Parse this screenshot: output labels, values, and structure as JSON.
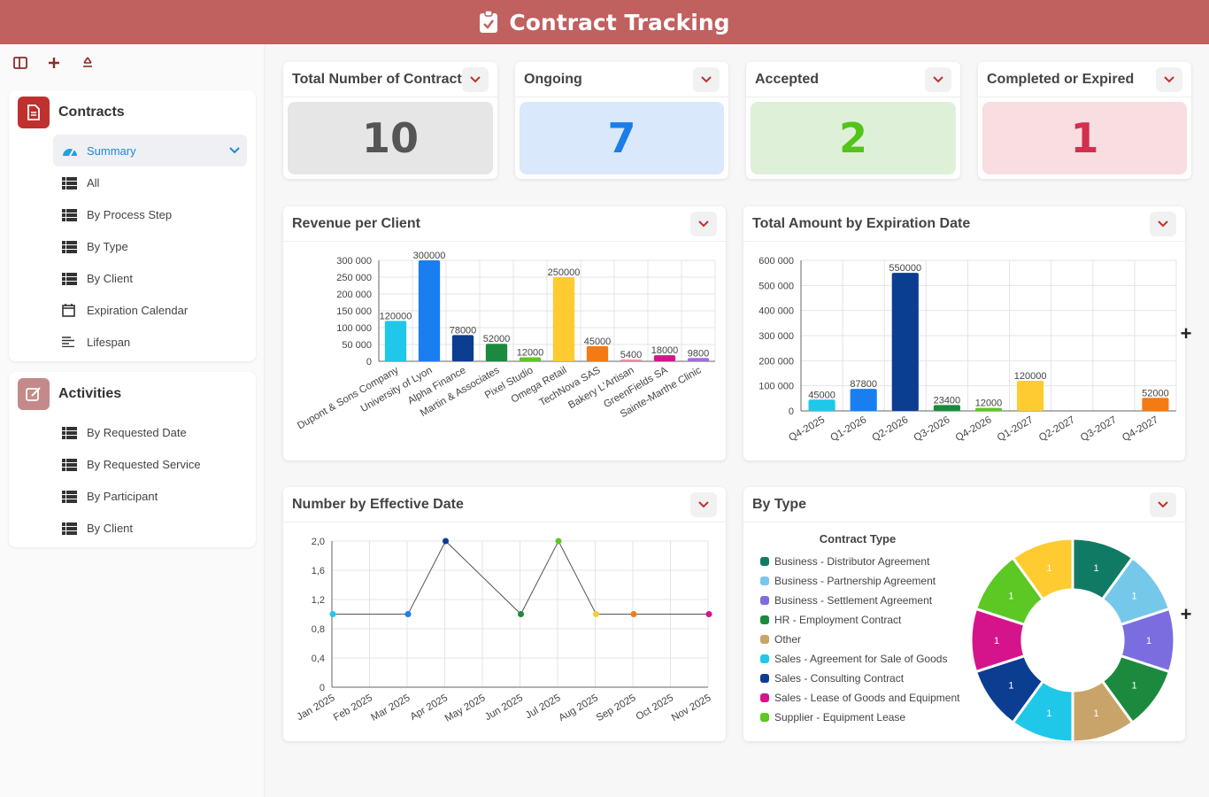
{
  "header": {
    "title": "Contract Tracking"
  },
  "sidebar": {
    "sections": [
      {
        "title": "Contracts",
        "color": "#c0302f",
        "items": [
          {
            "label": "Summary",
            "icon": "gauge-icon",
            "active": true
          },
          {
            "label": "All",
            "icon": "list-icon"
          },
          {
            "label": "By Process Step",
            "icon": "list-icon"
          },
          {
            "label": "By Type",
            "icon": "list-icon"
          },
          {
            "label": "By Client",
            "icon": "list-icon"
          },
          {
            "label": "Expiration Calendar",
            "icon": "calendar-icon"
          },
          {
            "label": "Lifespan",
            "icon": "lines-icon"
          }
        ]
      },
      {
        "title": "Activities",
        "color": "#c48a89",
        "items": [
          {
            "label": "By Requested Date",
            "icon": "list-icon"
          },
          {
            "label": "By Requested Service",
            "icon": "list-icon"
          },
          {
            "label": "By Participant",
            "icon": "list-icon"
          },
          {
            "label": "By Client",
            "icon": "list-icon"
          }
        ]
      }
    ]
  },
  "kpis": [
    {
      "title": "Total Number of Contract",
      "value": "10",
      "bg": "#e6e6e6",
      "color": "#555555"
    },
    {
      "title": "Ongoing",
      "value": "7",
      "bg": "#d9e8fb",
      "color": "#1a7ee6"
    },
    {
      "title": "Accepted",
      "value": "2",
      "bg": "#dff0d8",
      "color": "#52c41a"
    },
    {
      "title": "Completed or Expired",
      "value": "1",
      "bg": "#f8dde1",
      "color": "#d3304e"
    }
  ],
  "panels": {
    "revenue": "Revenue per Client",
    "expiration": "Total Amount by Expiration Date",
    "effective": "Number by Effective Date",
    "bytype": "By Type"
  },
  "chart_data": [
    {
      "type": "bar",
      "title": "Revenue per Client",
      "categories": [
        "Dupont & Sons Company",
        "University of Lyon",
        "Alpha Finance",
        "Martin & Associates",
        "Pixel Studio",
        "Omega Retail",
        "TechNova SAS",
        "Bakery L'Artisan",
        "GreenFields SA",
        "Sainte-Marthe Clinic"
      ],
      "values": [
        120000,
        300000,
        78000,
        52000,
        12000,
        250000,
        45000,
        5400,
        18000,
        9800
      ],
      "colors": [
        "#1fc8e8",
        "#1a7ef0",
        "#0b3d91",
        "#1b8a3e",
        "#5bc823",
        "#fecb30",
        "#f47a14",
        "#f08ca0",
        "#d5148b",
        "#a56bdc"
      ],
      "yticks": [
        "300 000",
        "250 000",
        "200 000",
        "150 000",
        "100 000",
        "50 000",
        "0"
      ],
      "ylim": [
        0,
        300000
      ]
    },
    {
      "type": "bar",
      "title": "Total Amount by Expiration Date",
      "categories": [
        "Q4-2025",
        "Q1-2026",
        "Q2-2026",
        "Q3-2026",
        "Q4-2026",
        "Q1-2027",
        "Q2-2027",
        "Q3-2027",
        "Q4-2027"
      ],
      "values": [
        45000,
        87800,
        550000,
        23400,
        12000,
        120000,
        null,
        null,
        52000
      ],
      "colors": [
        "#1fc8e8",
        "#1a7ef0",
        "#0b3d91",
        "#1b8a3e",
        "#5bc823",
        "#fecb30",
        "#cccccc",
        "#cccccc",
        "#f47a14"
      ],
      "yticks": [
        "600 000",
        "500 000",
        "400 000",
        "300 000",
        "200 000",
        "100 000",
        "0"
      ],
      "ylim": [
        0,
        600000
      ]
    },
    {
      "type": "line",
      "title": "Number by Effective Date",
      "categories": [
        "Jan 2025",
        "Feb 2025",
        "Mar 2025",
        "Apr 2025",
        "May 2025",
        "Jun 2025",
        "Jul 2025",
        "Aug 2025",
        "Sep 2025",
        "Oct 2025",
        "Nov 2025"
      ],
      "points": [
        {
          "x": "Jan 2025",
          "y": 1,
          "color": "#1fc8e8"
        },
        {
          "x": "Mar 2025",
          "y": 1,
          "color": "#1a7ef0"
        },
        {
          "x": "Apr 2025",
          "y": 2,
          "color": "#0b3d91"
        },
        {
          "x": "Jun 2025",
          "y": 1,
          "color": "#1b8a3e"
        },
        {
          "x": "Jul 2025",
          "y": 2,
          "color": "#5bc823"
        },
        {
          "x": "Aug 2025",
          "y": 1,
          "color": "#fecb30"
        },
        {
          "x": "Sep 2025",
          "y": 1,
          "color": "#f47a14"
        },
        {
          "x": "Nov 2025",
          "y": 1,
          "color": "#d5148b"
        }
      ],
      "yticks": [
        "2,0",
        "1,6",
        "1,2",
        "0,8",
        "0,4",
        "0"
      ],
      "ylim": [
        0,
        2
      ]
    },
    {
      "type": "pie",
      "title": "Contract Type",
      "slices": [
        {
          "label": "Business - Distributor Agreement",
          "value": 1,
          "color": "#117a65"
        },
        {
          "label": "Business - Partnership Agreement",
          "value": 1,
          "color": "#76c8ea"
        },
        {
          "label": "Business - Settlement Agreement",
          "value": 1,
          "color": "#7b6ce0"
        },
        {
          "label": "HR - Employment Contract",
          "value": 1,
          "color": "#1b8a3e"
        },
        {
          "label": "Other",
          "value": 1,
          "color": "#c9a46a"
        },
        {
          "label": "Sales - Agreement for Sale of Goods",
          "value": 1,
          "color": "#1fc8e8"
        },
        {
          "label": "Sales - Consulting Contract",
          "value": 1,
          "color": "#0b3d91"
        },
        {
          "label": "Sales - Lease of Goods and Equipment",
          "value": 1,
          "color": "#d5148b"
        },
        {
          "label": "Supplier - Equipment Lease",
          "value": 1,
          "color": "#5bc823"
        },
        {
          "label": "",
          "value": 1,
          "color": "#fecb30"
        }
      ]
    }
  ]
}
